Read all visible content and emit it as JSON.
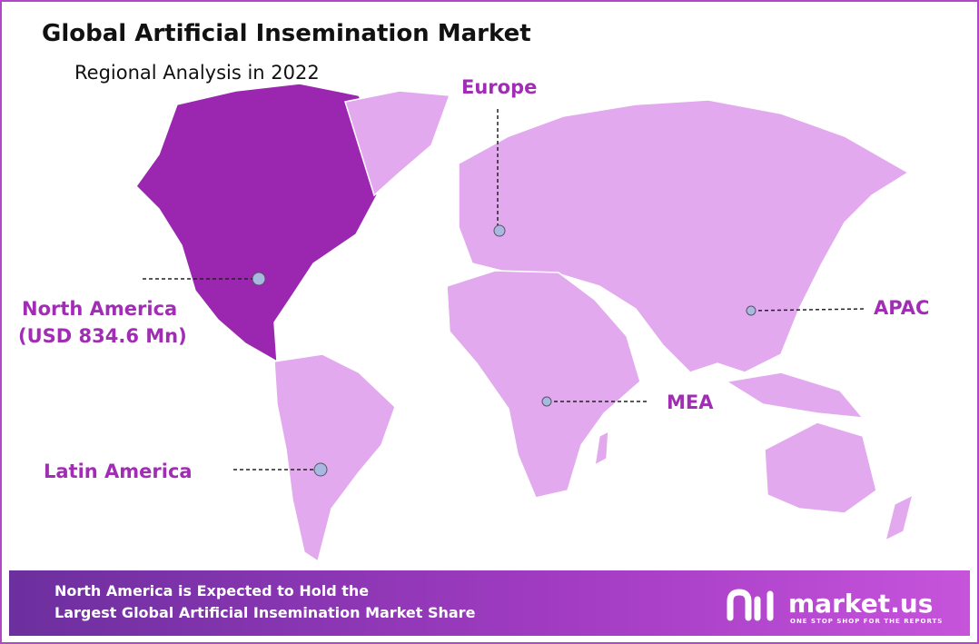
{
  "header": {
    "title": "Global Artificial Insemination Market",
    "subtitle": "Regional Analysis in 2022"
  },
  "regions": [
    {
      "label": "Europe"
    },
    {
      "label": "North America",
      "value_label": "(USD 834.6 Mn)"
    },
    {
      "label": "APAC"
    },
    {
      "label": "MEA"
    },
    {
      "label": "Latin America"
    }
  ],
  "footer": {
    "lines": [
      "North America is Expected to Hold the",
      "Largest Global Artificial Insemination Market Share"
    ]
  },
  "logo": {
    "name": "market.us",
    "tagline": "ONE STOP SHOP FOR THE REPORTS"
  }
}
